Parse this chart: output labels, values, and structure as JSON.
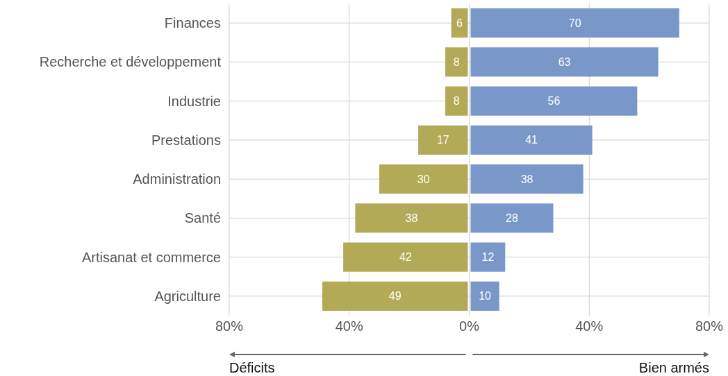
{
  "chart_data": {
    "type": "bar",
    "orientation": "horizontal",
    "categories": [
      "Finances",
      "Recherche et développement",
      "Industrie",
      "Prestations",
      "Administration",
      "Santé",
      "Artisanat et commerce",
      "Agriculture"
    ],
    "series": [
      {
        "color": "#b3aa58",
        "base": [
          -6,
          -8,
          -8,
          -17,
          -30,
          -38,
          -42,
          -49
        ],
        "values": [
          6,
          8,
          8,
          17,
          30,
          38,
          42,
          49
        ]
      },
      {
        "color": "#7a97c9",
        "values": [
          70,
          63,
          56,
          41,
          38,
          28,
          12,
          10
        ]
      }
    ],
    "xlim": [
      -80,
      80
    ],
    "xticks": [
      {
        "value": -80,
        "label": "80%"
      },
      {
        "value": -40,
        "label": "40%"
      },
      {
        "value": 0,
        "label": "0%"
      },
      {
        "value": 40,
        "label": "40%"
      },
      {
        "value": 80,
        "label": "80%"
      }
    ],
    "grid": true,
    "data_labels": true,
    "annotations": [
      "Déficits",
      "Bien armés"
    ]
  }
}
